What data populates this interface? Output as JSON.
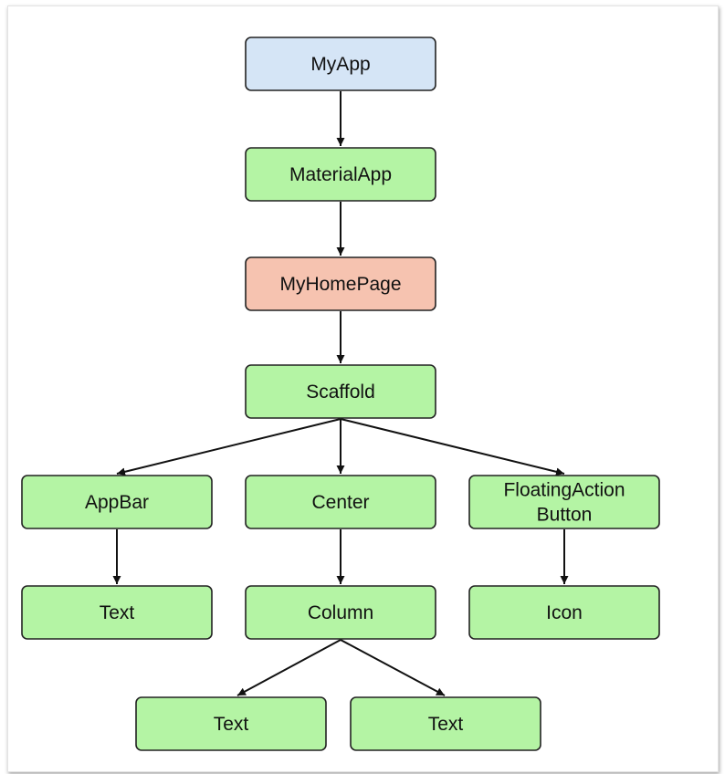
{
  "colors": {
    "root_fill": "#d5e5f6",
    "widget_fill": "#b4f4a4",
    "page_fill": "#f6c3b0",
    "stroke": "#222222"
  },
  "nodes": [
    {
      "id": "myapp",
      "lines": [
        "MyApp"
      ],
      "fill_key": "root_fill"
    },
    {
      "id": "materialapp",
      "lines": [
        "MaterialApp"
      ],
      "fill_key": "widget_fill"
    },
    {
      "id": "myhomepage",
      "lines": [
        "MyHomePage"
      ],
      "fill_key": "page_fill"
    },
    {
      "id": "scaffold",
      "lines": [
        "Scaffold"
      ],
      "fill_key": "widget_fill"
    },
    {
      "id": "appbar",
      "lines": [
        "AppBar"
      ],
      "fill_key": "widget_fill"
    },
    {
      "id": "center",
      "lines": [
        "Center"
      ],
      "fill_key": "widget_fill"
    },
    {
      "id": "fab",
      "lines": [
        "FloatingAction",
        "Button"
      ],
      "fill_key": "widget_fill"
    },
    {
      "id": "appbar-text",
      "lines": [
        "Text"
      ],
      "fill_key": "widget_fill"
    },
    {
      "id": "column",
      "lines": [
        "Column"
      ],
      "fill_key": "widget_fill"
    },
    {
      "id": "icon",
      "lines": [
        "Icon"
      ],
      "fill_key": "widget_fill"
    },
    {
      "id": "column-text-left",
      "lines": [
        "Text"
      ],
      "fill_key": "widget_fill"
    },
    {
      "id": "column-text-right",
      "lines": [
        "Text"
      ],
      "fill_key": "widget_fill"
    }
  ],
  "edges": [
    {
      "from": "myapp",
      "to": "materialapp"
    },
    {
      "from": "materialapp",
      "to": "myhomepage"
    },
    {
      "from": "myhomepage",
      "to": "scaffold"
    },
    {
      "from": "scaffold",
      "to": "appbar"
    },
    {
      "from": "scaffold",
      "to": "center"
    },
    {
      "from": "scaffold",
      "to": "fab"
    },
    {
      "from": "appbar",
      "to": "appbar-text"
    },
    {
      "from": "center",
      "to": "column"
    },
    {
      "from": "fab",
      "to": "icon"
    },
    {
      "from": "column",
      "to": "column-text-left"
    },
    {
      "from": "column",
      "to": "column-text-right"
    }
  ]
}
